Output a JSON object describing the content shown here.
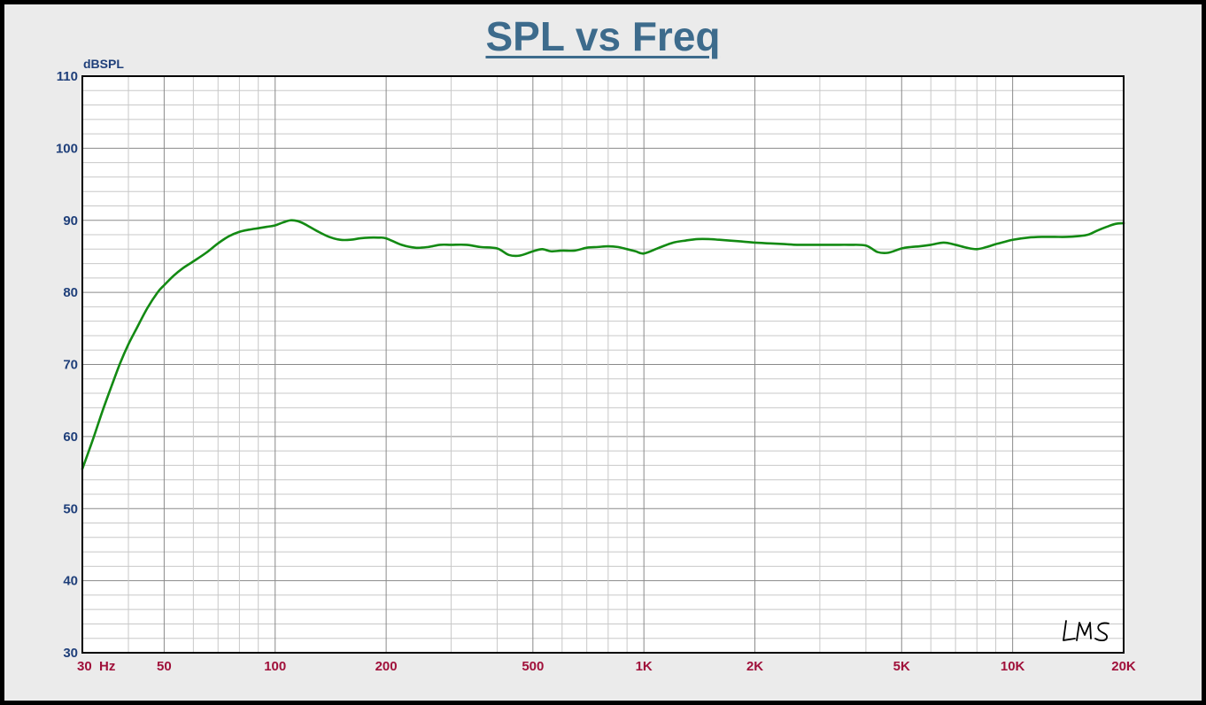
{
  "chart_data": {
    "type": "line",
    "title": "SPL vs Freq",
    "ylabel": "dBSPL",
    "xlabel": "",
    "x_scale": "log",
    "xlim": [
      30,
      20000
    ],
    "ylim": [
      30,
      110
    ],
    "yticks": [
      30,
      40,
      50,
      60,
      70,
      80,
      90,
      100,
      110
    ],
    "xticks": [
      {
        "value": 30,
        "label": "30  Hz"
      },
      {
        "value": 50,
        "label": "50"
      },
      {
        "value": 100,
        "label": "100"
      },
      {
        "value": 200,
        "label": "200"
      },
      {
        "value": 500,
        "label": "500"
      },
      {
        "value": 1000,
        "label": "1K"
      },
      {
        "value": 2000,
        "label": "2K"
      },
      {
        "value": 5000,
        "label": "5K"
      },
      {
        "value": 10000,
        "label": "10K"
      },
      {
        "value": 20000,
        "label": "20K"
      }
    ],
    "grid": true,
    "series": [
      {
        "color": "#138a13",
        "x": [
          30,
          32,
          34,
          36,
          38,
          40,
          42,
          45,
          48,
          50,
          53,
          56,
          60,
          65,
          70,
          75,
          80,
          85,
          90,
          95,
          100,
          105,
          110,
          115,
          120,
          130,
          140,
          150,
          160,
          170,
          180,
          190,
          200,
          220,
          240,
          260,
          280,
          300,
          330,
          360,
          400,
          430,
          460,
          500,
          530,
          560,
          600,
          650,
          700,
          750,
          800,
          850,
          900,
          950,
          1000,
          1100,
          1200,
          1300,
          1400,
          1500,
          1600,
          1800,
          2000,
          2200,
          2400,
          2600,
          2800,
          3000,
          3300,
          3600,
          4000,
          4300,
          4600,
          5000,
          5300,
          5600,
          6000,
          6500,
          7000,
          7500,
          8000,
          8500,
          9000,
          9500,
          10000,
          11000,
          12000,
          13000,
          14000,
          15000,
          16000,
          17000,
          18000,
          19000,
          20000
        ],
        "y": [
          55.5,
          59.5,
          63.5,
          67,
          70.2,
          72.8,
          74.9,
          77.8,
          80,
          81,
          82.3,
          83.3,
          84.3,
          85.5,
          86.8,
          87.8,
          88.4,
          88.7,
          88.9,
          89.1,
          89.3,
          89.7,
          90,
          89.9,
          89.5,
          88.5,
          87.7,
          87.3,
          87.3,
          87.5,
          87.6,
          87.6,
          87.5,
          86.6,
          86.2,
          86.3,
          86.6,
          86.6,
          86.6,
          86.3,
          86.1,
          85.2,
          85.1,
          85.7,
          86,
          85.7,
          85.8,
          85.8,
          86.2,
          86.3,
          86.4,
          86.3,
          86,
          85.7,
          85.4,
          86.2,
          86.9,
          87.2,
          87.4,
          87.4,
          87.3,
          87.1,
          86.9,
          86.8,
          86.7,
          86.6,
          86.6,
          86.6,
          86.6,
          86.6,
          86.5,
          85.6,
          85.5,
          86.1,
          86.3,
          86.4,
          86.6,
          86.9,
          86.6,
          86.2,
          86,
          86.3,
          86.7,
          87,
          87.3,
          87.6,
          87.7,
          87.7,
          87.7,
          87.8,
          88,
          88.6,
          89.1,
          89.5,
          89.6
        ]
      }
    ]
  },
  "watermark": "LMS"
}
